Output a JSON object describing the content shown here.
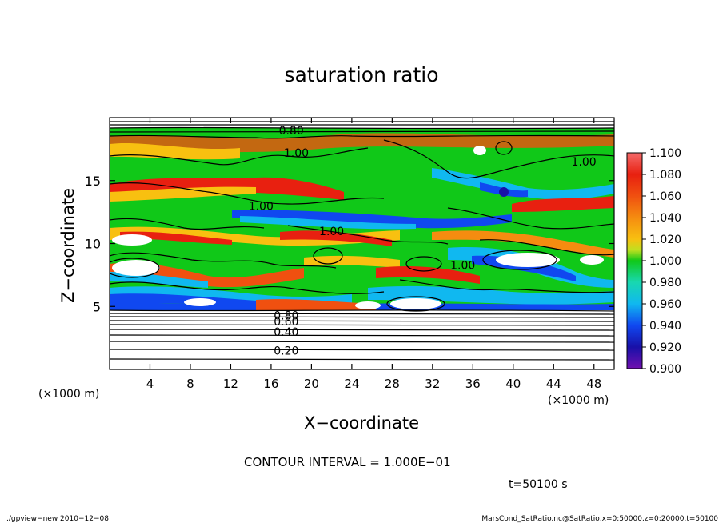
{
  "title": "saturation ratio",
  "xlabel": "X−coordinate",
  "ylabel": "Z−coordinate",
  "x_unit_left": "(×1000 m)",
  "x_unit_right": "(×1000 m)",
  "contour_interval": "CONTOUR INTERVAL = 1.000E−01",
  "time_label": "t=50100 s",
  "footer_left": "./gpview−new 2010−12−08",
  "footer_right": "MarsCond_SatRatio.nc@SatRatio,x=0:50000,z=0:20000,t=50100",
  "chart_data": {
    "type": "heatmap",
    "title": "saturation ratio",
    "xlabel": "X−coordinate",
    "ylabel": "Z−coordinate",
    "xlim": [
      0,
      50000
    ],
    "ylim": [
      0,
      20000
    ],
    "x_ticks": [
      "4",
      "8",
      "12",
      "16",
      "20",
      "24",
      "28",
      "32",
      "36",
      "40",
      "44",
      "48"
    ],
    "y_ticks": [
      "5",
      "10",
      "15"
    ],
    "colorbar": {
      "min": 0.9,
      "max": 1.1,
      "labels": [
        "1.100",
        "1.080",
        "1.060",
        "1.040",
        "1.020",
        "1.000",
        "0.980",
        "0.960",
        "0.940",
        "0.920",
        "0.900"
      ],
      "colors": [
        "#f46a6a",
        "#e82010",
        "#f05010",
        "#f58c10",
        "#f8c010",
        "#c0e020",
        "#10c818",
        "#18d8b0",
        "#10b8f0",
        "#1048f0",
        "#1810a8",
        "#7010b0"
      ]
    },
    "contour_labels": [
      {
        "text": "0.80",
        "x": 18000,
        "z": 19000
      },
      {
        "text": "1.00",
        "x": 18500,
        "z": 17200
      },
      {
        "text": "1.00",
        "x": 47000,
        "z": 16500
      },
      {
        "text": "1.00",
        "x": 15000,
        "z": 13000
      },
      {
        "text": "1.00",
        "x": 22000,
        "z": 11000
      },
      {
        "text": "1.00",
        "x": 35000,
        "z": 8300
      },
      {
        "text": "0.80",
        "x": 17500,
        "z": 4300
      },
      {
        "text": "0.60",
        "x": 17500,
        "z": 3800
      },
      {
        "text": "0.40",
        "x": 17500,
        "z": 3000
      },
      {
        "text": "0.20",
        "x": 17500,
        "z": 1500
      }
    ]
  }
}
